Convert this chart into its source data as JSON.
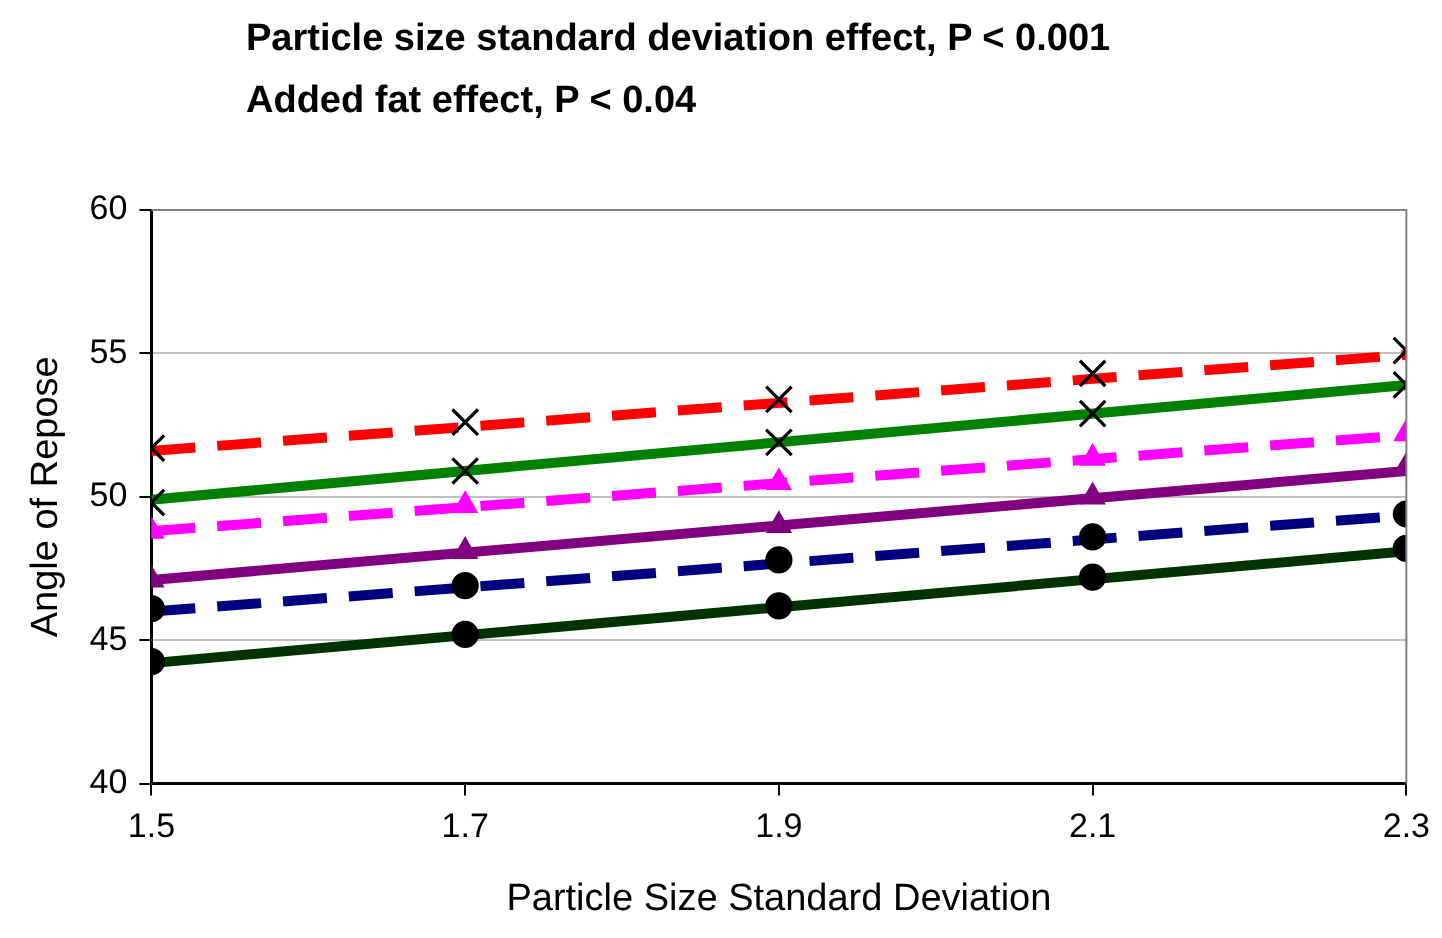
{
  "chart_data": {
    "type": "scatter",
    "title": "Particle size standard deviation effect, P < 0.001",
    "subtitle": "Added fat effect, P < 0.04",
    "xlabel": "Particle Size Standard Deviation",
    "ylabel": "Angle of Repose",
    "x": [
      1.5,
      1.7,
      1.9,
      2.1,
      2.3
    ],
    "xlim": [
      1.5,
      2.3
    ],
    "xticks": [
      1.5,
      1.7,
      1.9,
      2.1,
      2.3
    ],
    "ylim": [
      40,
      60
    ],
    "yticks": [
      40,
      45,
      50,
      55,
      60
    ],
    "grid": "y",
    "legend": false,
    "series": [
      {
        "marker": "cross",
        "color": "#000000",
        "values": [
          51.7,
          52.6,
          53.4,
          54.3,
          55.1
        ]
      },
      {
        "marker": "cross",
        "color": "#000000",
        "values": [
          49.8,
          50.9,
          51.9,
          52.9,
          53.9
        ]
      },
      {
        "marker": "triangle",
        "color": "#ff00ff",
        "values": [
          48.8,
          49.7,
          50.5,
          51.35,
          52.2
        ]
      },
      {
        "marker": "triangle",
        "color": "#800080",
        "values": [
          47.1,
          48.1,
          49.0,
          50.0,
          51.05
        ]
      },
      {
        "marker": "circle",
        "color": "#000000",
        "values": [
          46.1,
          46.9,
          47.8,
          48.6,
          49.4
        ]
      },
      {
        "marker": "circle",
        "color": "#000000",
        "values": [
          44.25,
          45.2,
          46.2,
          47.2,
          48.2
        ]
      },
      {
        "type": "line",
        "marker": "none",
        "line_style": "dashed",
        "color": "#ff0000",
        "values": [
          51.6,
          null,
          null,
          null,
          54.95
        ]
      },
      {
        "type": "line",
        "marker": "none",
        "line_style": "solid",
        "color": "#008000",
        "values": [
          49.9,
          null,
          null,
          null,
          53.9
        ]
      },
      {
        "type": "line",
        "marker": "none",
        "line_style": "dashed",
        "color": "#ff00ff",
        "values": [
          48.8,
          null,
          null,
          null,
          52.15
        ]
      },
      {
        "type": "line",
        "marker": "none",
        "line_style": "solid",
        "color": "#800080",
        "values": [
          47.1,
          null,
          null,
          null,
          50.9
        ]
      },
      {
        "type": "line",
        "marker": "none",
        "line_style": "dashed",
        "color": "#000080",
        "values": [
          46.0,
          null,
          null,
          null,
          49.35
        ]
      },
      {
        "type": "line",
        "marker": "none",
        "line_style": "solid",
        "color": "#003300",
        "values": [
          44.2,
          null,
          null,
          null,
          48.1
        ]
      }
    ]
  }
}
